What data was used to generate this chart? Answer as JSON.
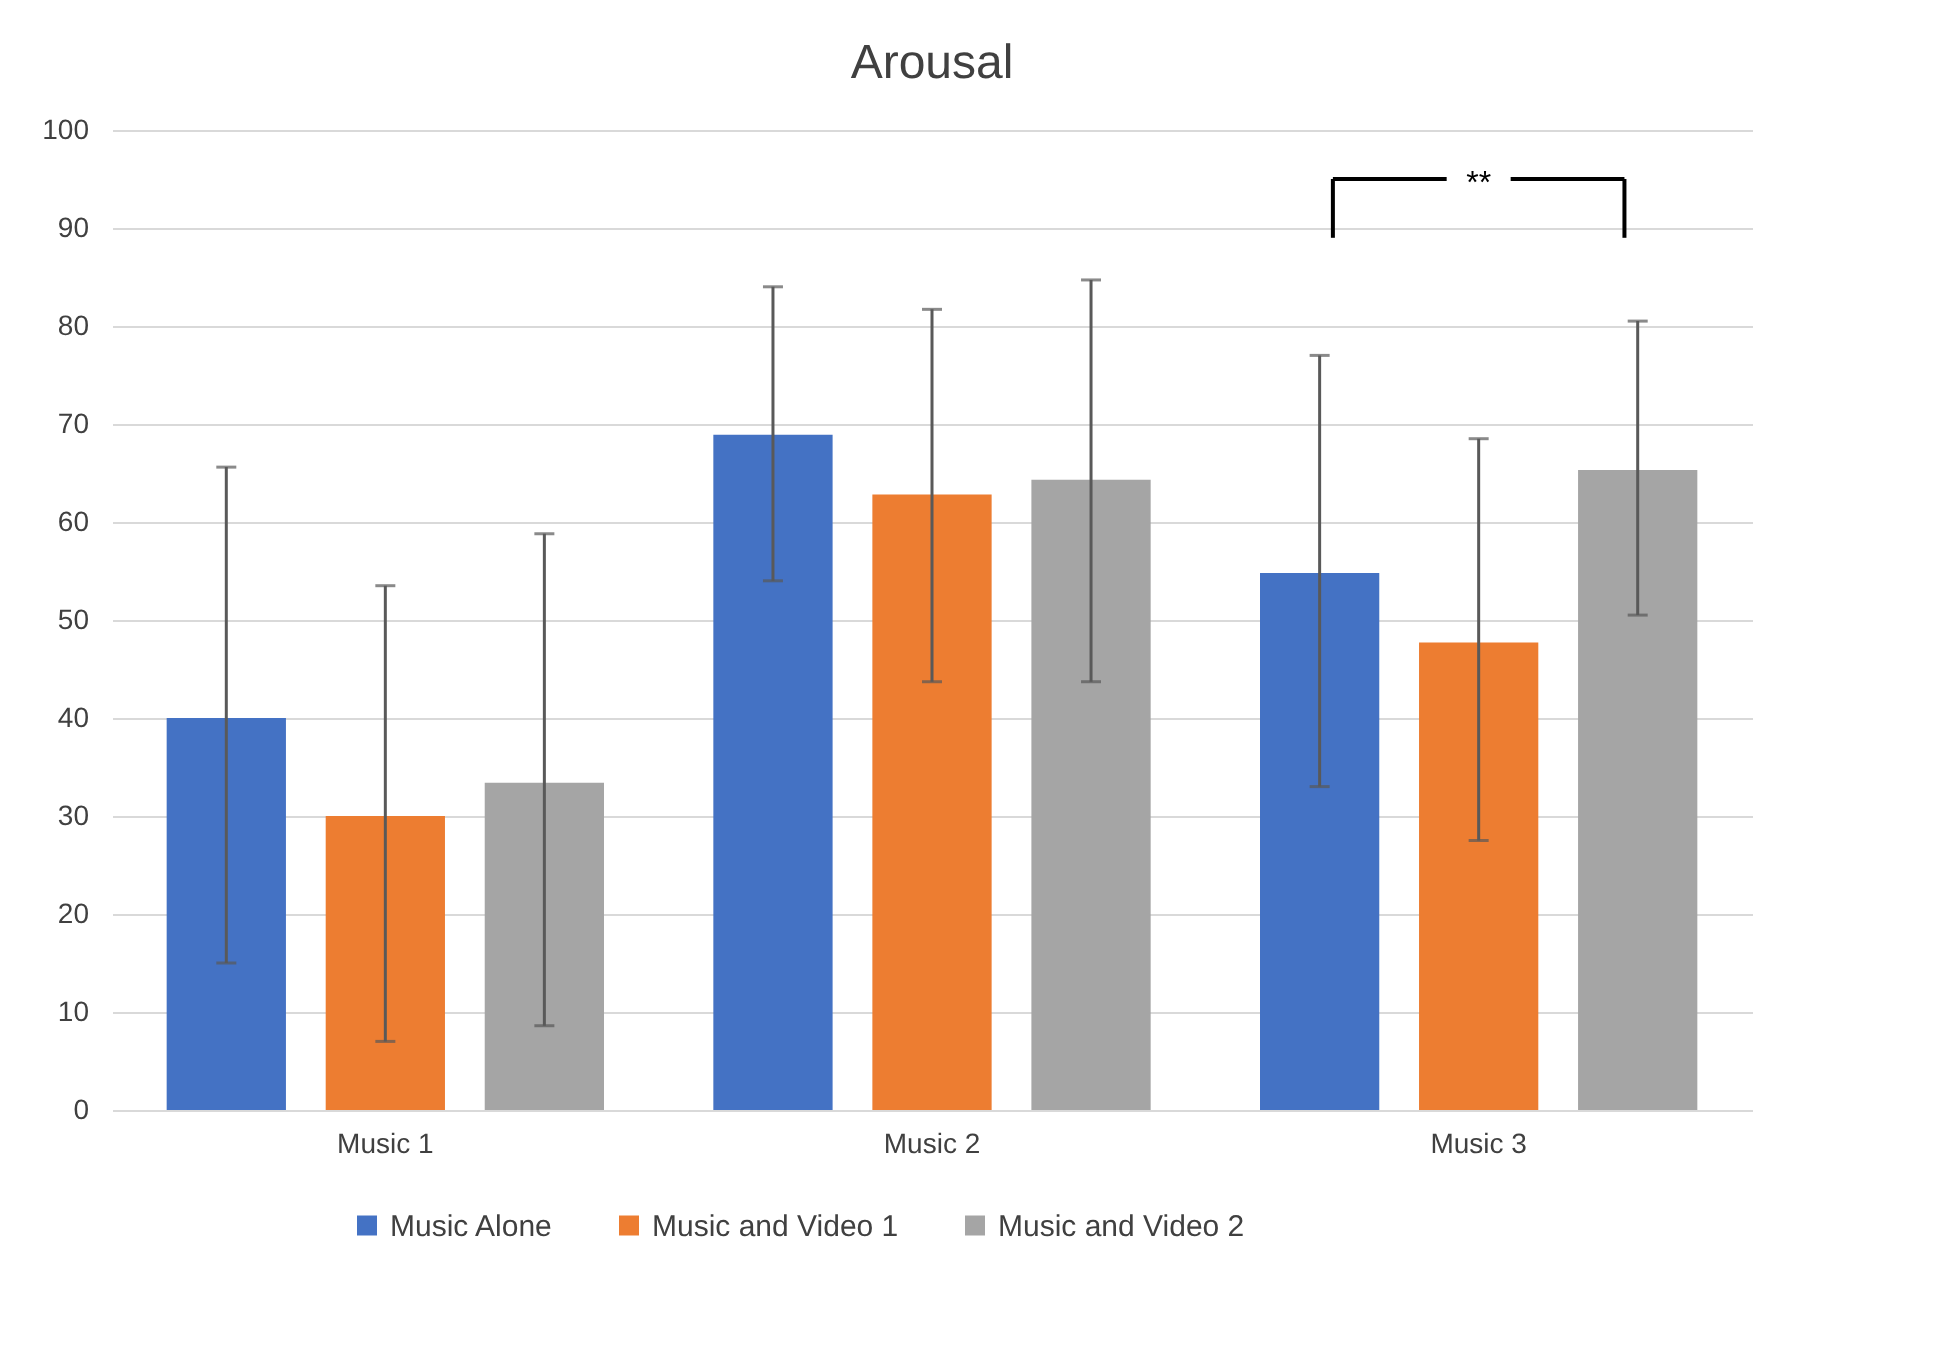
{
  "chart_data": {
    "type": "bar",
    "title": "Arousal",
    "categories": [
      "Music 1",
      "Music 2",
      "Music 3"
    ],
    "series": [
      {
        "name": "Music Alone",
        "color": "#4472c4",
        "values": [
          40,
          68.9,
          54.8
        ],
        "errors": [
          [
            15,
            65.6
          ],
          [
            54,
            84
          ],
          [
            33,
            77
          ]
        ]
      },
      {
        "name": "Music and Video 1",
        "color": "#ed7d31",
        "values": [
          30,
          62.8,
          47.7
        ],
        "errors": [
          [
            7,
            53.5
          ],
          [
            43.7,
            81.7
          ],
          [
            27.5,
            68.5
          ]
        ]
      },
      {
        "name": "Music and Video 2",
        "color": "#a5a5a5",
        "values": [
          33.4,
          64.3,
          65.3
        ],
        "errors": [
          [
            8.6,
            58.8
          ],
          [
            43.7,
            84.7
          ],
          [
            50.5,
            80.5
          ]
        ]
      }
    ],
    "ylim": [
      0,
      100
    ],
    "yticks": [
      0,
      10,
      20,
      30,
      40,
      50,
      60,
      70,
      80,
      90,
      100
    ],
    "grid": "y",
    "legend": "bottom",
    "annotations": [
      "**"
    ]
  }
}
